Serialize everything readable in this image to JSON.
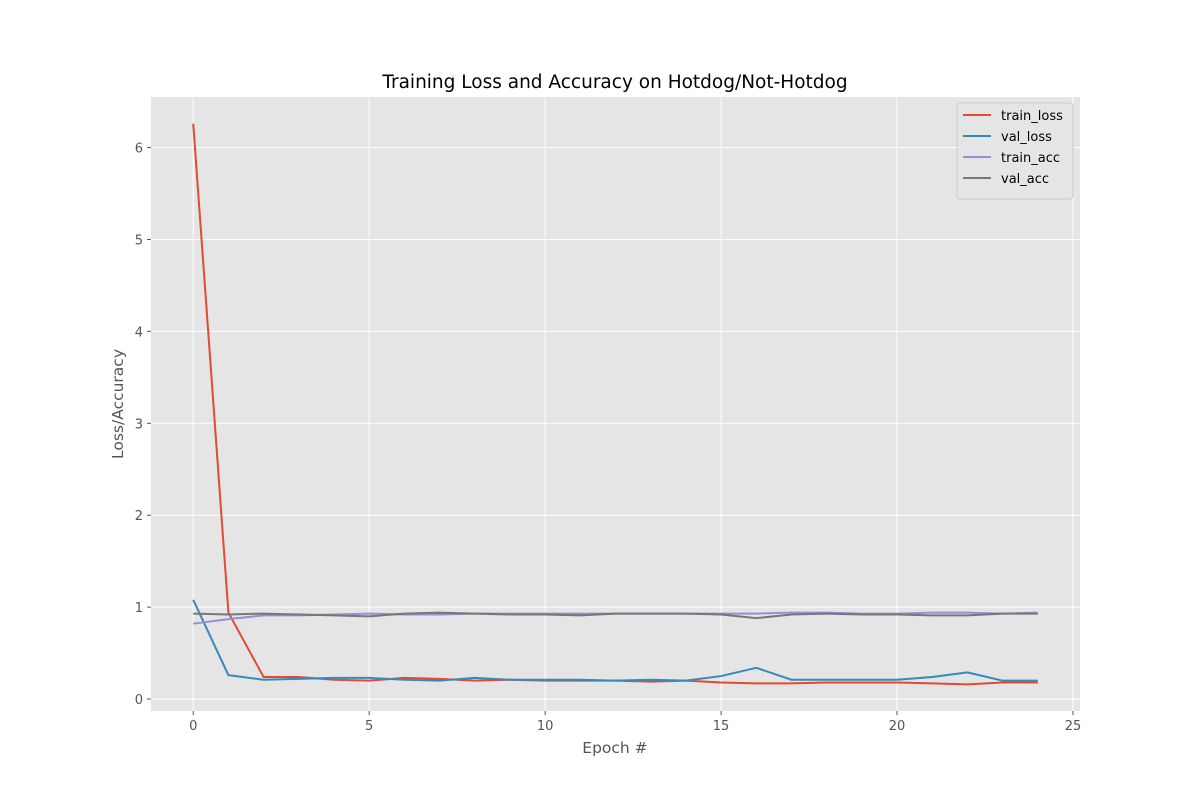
{
  "chart_data": {
    "type": "line",
    "title": "Training Loss and Accuracy on Hotdog/Not-Hotdog",
    "xlabel": "Epoch #",
    "ylabel": "Loss/Accuracy",
    "xlim": [
      -1.2,
      25.2
    ],
    "ylim": [
      -0.13,
      6.55
    ],
    "x_ticks": [
      0,
      5,
      10,
      15,
      20,
      25
    ],
    "y_ticks": [
      0,
      1,
      2,
      3,
      4,
      5,
      6
    ],
    "grid": true,
    "legend_position": "top-right",
    "x": [
      0,
      1,
      2,
      3,
      4,
      5,
      6,
      7,
      8,
      9,
      10,
      11,
      12,
      13,
      14,
      15,
      16,
      17,
      18,
      19,
      20,
      21,
      22,
      23,
      24
    ],
    "series": [
      {
        "name": "train_loss",
        "color": "#E24A33",
        "values": [
          6.26,
          0.94,
          0.24,
          0.24,
          0.21,
          0.2,
          0.23,
          0.22,
          0.2,
          0.21,
          0.2,
          0.2,
          0.2,
          0.19,
          0.2,
          0.18,
          0.17,
          0.17,
          0.18,
          0.18,
          0.18,
          0.17,
          0.16,
          0.18,
          0.18
        ]
      },
      {
        "name": "val_loss",
        "color": "#348ABD",
        "values": [
          1.08,
          0.26,
          0.21,
          0.22,
          0.23,
          0.23,
          0.21,
          0.2,
          0.23,
          0.21,
          0.21,
          0.21,
          0.2,
          0.21,
          0.2,
          0.25,
          0.34,
          0.21,
          0.21,
          0.21,
          0.21,
          0.24,
          0.29,
          0.2,
          0.2
        ]
      },
      {
        "name": "train_acc",
        "color": "#988ED5",
        "values": [
          0.82,
          0.87,
          0.91,
          0.91,
          0.92,
          0.93,
          0.92,
          0.92,
          0.93,
          0.93,
          0.93,
          0.93,
          0.93,
          0.93,
          0.93,
          0.93,
          0.93,
          0.94,
          0.94,
          0.93,
          0.93,
          0.94,
          0.94,
          0.93,
          0.94
        ]
      },
      {
        "name": "val_acc",
        "color": "#777777",
        "values": [
          0.93,
          0.92,
          0.93,
          0.92,
          0.91,
          0.9,
          0.93,
          0.94,
          0.93,
          0.92,
          0.92,
          0.91,
          0.93,
          0.93,
          0.93,
          0.92,
          0.88,
          0.92,
          0.93,
          0.92,
          0.92,
          0.91,
          0.91,
          0.93,
          0.93
        ]
      }
    ]
  }
}
